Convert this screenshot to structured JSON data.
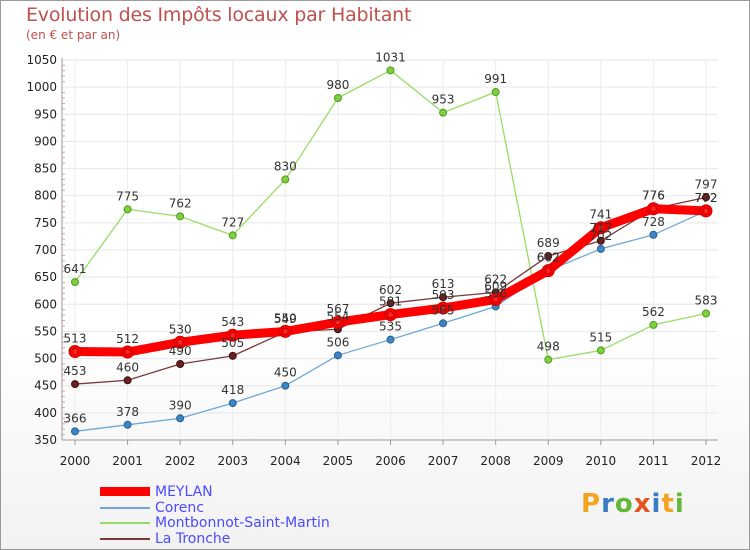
{
  "chart_data": {
    "type": "line",
    "title": "Evolution des Impôts locaux par Habitant",
    "subtitle": "(en € et par an)",
    "xlabel": "",
    "ylabel": "",
    "ylim": [
      350,
      1050
    ],
    "ytick_step": 50,
    "categories": [
      "2000",
      "2001",
      "2002",
      "2003",
      "2004",
      "2005",
      "2006",
      "2007",
      "2008",
      "2009",
      "2010",
      "2011",
      "2012"
    ],
    "series": [
      {
        "name": "MEYLAN",
        "color": "#ff0000",
        "values": [
          513,
          512,
          530,
          543,
          550,
          567,
          581,
          593,
          609,
          662,
          741,
          776,
          772
        ]
      },
      {
        "name": "Corenc",
        "color": "#6fa8d6",
        "values": [
          366,
          378,
          390,
          418,
          450,
          506,
          535,
          565,
          596,
          662,
          702,
          728,
          772
        ]
      },
      {
        "name": "Montbonnot-Saint-Martin",
        "color": "#99dd66",
        "values": [
          641,
          775,
          762,
          727,
          830,
          980,
          1031,
          953,
          991,
          498,
          515,
          562,
          583
        ]
      },
      {
        "name": "La Tronche",
        "color": "#7a3a3a",
        "values": [
          453,
          460,
          490,
          505,
          549,
          554,
          602,
          613,
          622,
          689,
          717,
          776,
          797
        ]
      }
    ]
  },
  "logo": {
    "text": "Proxiti",
    "colors": [
      "#f2a31f",
      "#3a7cc4",
      "#63b835",
      "#e8541f",
      "#3a7cc4",
      "#f2a31f",
      "#63b835"
    ]
  }
}
